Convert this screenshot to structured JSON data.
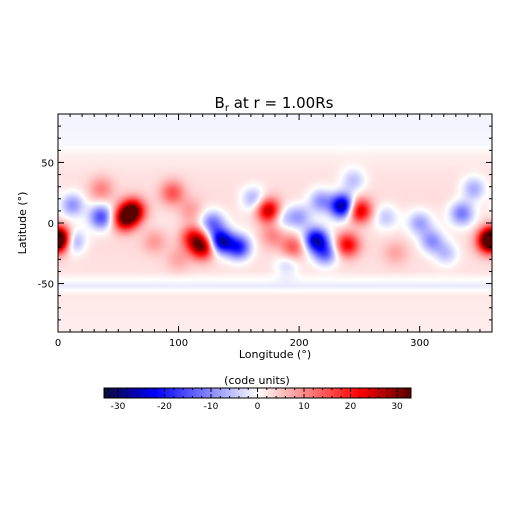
{
  "chart_data": {
    "type": "heatmap",
    "title_main": "B",
    "title_sub": "r",
    "title_rest": " at r = 1.00Rs",
    "xlabel": "Longitude (°)",
    "ylabel": "Latitude (°)",
    "xlim": [
      0,
      360
    ],
    "ylim": [
      -90,
      90
    ],
    "xticks": [
      0,
      100,
      200,
      300
    ],
    "yticks": [
      -50,
      0,
      50
    ],
    "x_minor_step": 10,
    "y_minor_step": 10,
    "colorbar": {
      "label": "(code units)",
      "range": [
        -33,
        33
      ],
      "ticks": [
        -30,
        -20,
        -10,
        0,
        10,
        20,
        30
      ],
      "colors": [
        "#0a0a3a",
        "#0000ff",
        "#ffffff",
        "#ff0000",
        "#5a0000"
      ],
      "minor_step": 2
    },
    "features": [
      {
        "lon": 62,
        "lat": 10,
        "value": 30
      },
      {
        "lon": 55,
        "lat": 3,
        "value": 25
      },
      {
        "lon": 36,
        "lat": 28,
        "value": 8
      },
      {
        "lon": 36,
        "lat": 5,
        "value": -18
      },
      {
        "lon": 12,
        "lat": 15,
        "value": -12
      },
      {
        "lon": 12,
        "lat": -15,
        "value": -14
      },
      {
        "lon": 2,
        "lat": -12,
        "value": 22
      },
      {
        "lon": 358,
        "lat": -15,
        "value": 30
      },
      {
        "lon": 95,
        "lat": 25,
        "value": 12
      },
      {
        "lon": 112,
        "lat": -12,
        "value": 18
      },
      {
        "lon": 120,
        "lat": -20,
        "value": 26
      },
      {
        "lon": 135,
        "lat": -15,
        "value": -30
      },
      {
        "lon": 150,
        "lat": -20,
        "value": -22
      },
      {
        "lon": 128,
        "lat": 0,
        "value": -14
      },
      {
        "lon": 162,
        "lat": 20,
        "value": -10
      },
      {
        "lon": 175,
        "lat": 10,
        "value": 26
      },
      {
        "lon": 200,
        "lat": 5,
        "value": -10
      },
      {
        "lon": 218,
        "lat": 18,
        "value": -12
      },
      {
        "lon": 214,
        "lat": -14,
        "value": -28
      },
      {
        "lon": 222,
        "lat": -25,
        "value": -16
      },
      {
        "lon": 236,
        "lat": 14,
        "value": -32
      },
      {
        "lon": 250,
        "lat": 10,
        "value": 24
      },
      {
        "lon": 245,
        "lat": 35,
        "value": -8
      },
      {
        "lon": 240,
        "lat": -18,
        "value": 20
      },
      {
        "lon": 195,
        "lat": -20,
        "value": 12
      },
      {
        "lon": 190,
        "lat": -35,
        "value": -6
      },
      {
        "lon": 272,
        "lat": 5,
        "value": -7
      },
      {
        "lon": 300,
        "lat": 0,
        "value": -10
      },
      {
        "lon": 310,
        "lat": -15,
        "value": -12
      },
      {
        "lon": 335,
        "lat": 8,
        "value": -14
      },
      {
        "lon": 345,
        "lat": 28,
        "value": -10
      },
      {
        "lon": 322,
        "lat": -25,
        "value": -8
      },
      {
        "lon": 80,
        "lat": -15,
        "value": 6
      },
      {
        "lon": 110,
        "lat": 10,
        "value": 6
      },
      {
        "lon": 280,
        "lat": -25,
        "value": 5
      },
      {
        "lon": 100,
        "lat": -30,
        "value": 5
      },
      {
        "lon": 178,
        "lat": -10,
        "value": 8
      },
      {
        "lon": 185,
        "lat": 5,
        "value": -8
      }
    ],
    "background": [
      {
        "lat": -90,
        "value": 1.5
      },
      {
        "lat": -70,
        "value": 1.8
      },
      {
        "lat": -60,
        "value": 2
      },
      {
        "lat": -52,
        "value": -1.8
      },
      {
        "lat": -40,
        "value": 2.5
      },
      {
        "lat": -20,
        "value": 3
      },
      {
        "lat": 0,
        "value": 2
      },
      {
        "lat": 20,
        "value": 3
      },
      {
        "lat": 40,
        "value": 2.5
      },
      {
        "lat": 55,
        "value": 1.5
      },
      {
        "lat": 65,
        "value": -0.6
      },
      {
        "lat": 80,
        "value": -1
      },
      {
        "lat": 90,
        "value": -0.8
      }
    ]
  }
}
